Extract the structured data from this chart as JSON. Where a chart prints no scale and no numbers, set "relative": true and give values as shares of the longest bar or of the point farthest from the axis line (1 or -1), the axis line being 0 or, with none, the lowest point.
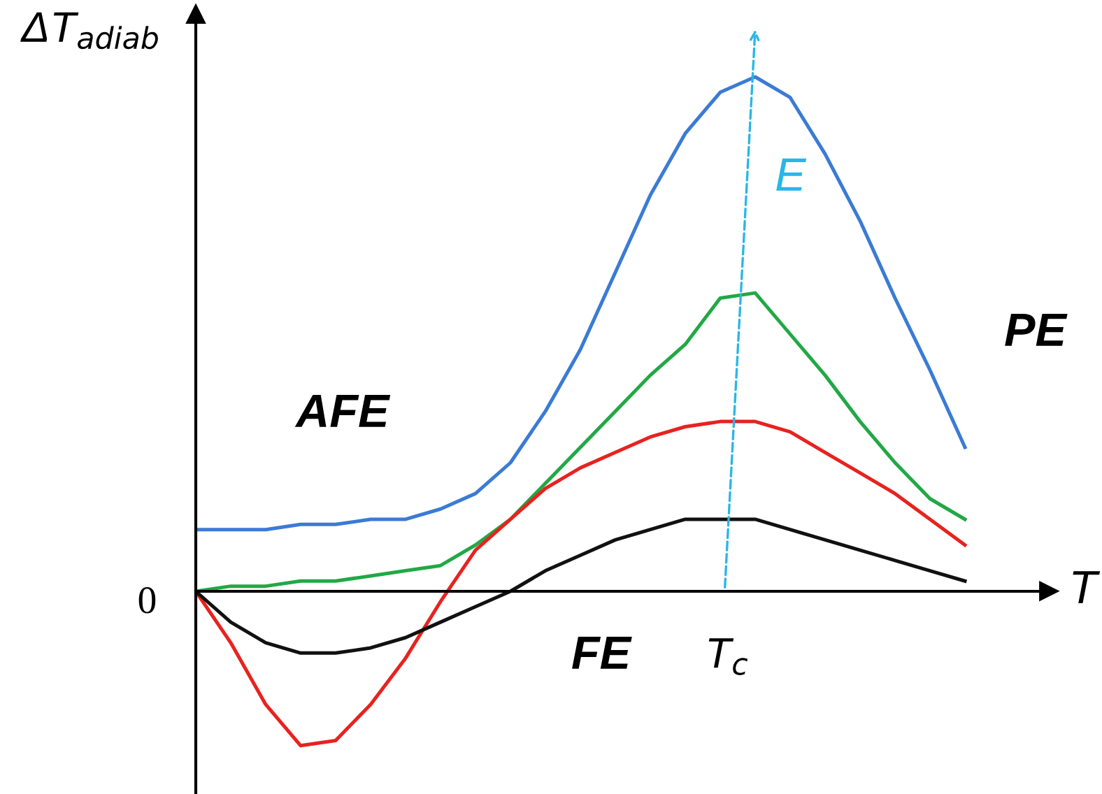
{
  "chart_data": {
    "type": "line",
    "relative": true,
    "xlabel": "T",
    "ylabel": "ΔT$_{adiab}$",
    "categories": [
      null,
      null,
      null,
      null,
      null,
      null,
      null,
      null,
      null,
      null,
      null,
      null,
      null,
      null,
      null,
      null,
      null,
      null,
      null,
      null,
      null,
      null,
      null
    ],
    "series": [
      {
        "color": "#3a7bd5",
        "values": [
          0.12,
          0.12,
          0.12,
          0.13,
          0.13,
          0.14,
          0.14,
          0.16,
          0.19,
          0.25,
          0.35,
          0.47,
          0.62,
          0.77,
          0.89,
          0.97,
          1.0,
          0.96,
          0.85,
          0.72,
          0.57,
          0.43,
          0.28
        ]
      },
      {
        "color": "#22a845",
        "values": [
          0,
          0.01,
          0.01,
          0.02,
          0.02,
          0.03,
          0.04,
          0.05,
          0.09,
          0.14,
          0.21,
          0.28,
          0.35,
          0.42,
          0.48,
          0.57,
          0.58,
          0.5,
          0.42,
          0.33,
          0.25,
          0.18,
          0.14
        ]
      },
      {
        "color": "#e8221f",
        "values": [
          0,
          -0.1,
          -0.22,
          -0.3,
          -0.29,
          -0.22,
          -0.13,
          -0.02,
          0.08,
          0.14,
          0.2,
          0.24,
          0.27,
          0.3,
          0.32,
          0.33,
          0.33,
          0.31,
          0.27,
          0.23,
          0.19,
          0.14,
          0.09
        ]
      },
      {
        "color": "#111111",
        "values": [
          0,
          -0.06,
          -0.1,
          -0.12,
          -0.12,
          -0.11,
          -0.09,
          -0.06,
          -0.03,
          0.0,
          0.04,
          0.07,
          0.1,
          0.12,
          0.14,
          0.14,
          0.14,
          0.12,
          0.1,
          0.08,
          0.06,
          0.04,
          0.02
        ]
      }
    ],
    "annotations": [
      "AFE",
      "PE",
      "FE",
      "T$_{c}$",
      "E",
      "0"
    ],
    "legend": false
  }
}
